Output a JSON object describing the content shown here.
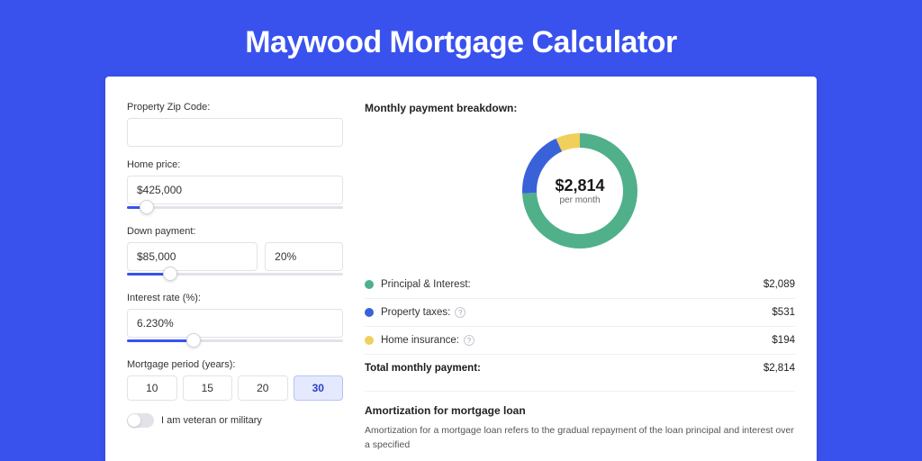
{
  "page": {
    "title": "Maywood Mortgage Calculator",
    "background_color": "#3952ee",
    "card_background": "#ffffff"
  },
  "form": {
    "zip": {
      "label": "Property Zip Code:",
      "value": ""
    },
    "home_price": {
      "label": "Home price:",
      "value": "$425,000",
      "slider_percent": 9
    },
    "down_payment": {
      "label": "Down payment:",
      "value": "$85,000",
      "percent_value": "20%",
      "slider_percent": 20
    },
    "interest_rate": {
      "label": "Interest rate (%):",
      "value": "6.230%",
      "slider_percent": 31
    },
    "mortgage_period": {
      "label": "Mortgage period (years):",
      "options": [
        "10",
        "15",
        "20",
        "30"
      ],
      "selected": "30"
    },
    "veteran": {
      "label": "I am veteran or military",
      "checked": false
    }
  },
  "breakdown": {
    "heading": "Monthly payment breakdown:",
    "donut": {
      "center_amount": "$2,814",
      "center_sub": "per month",
      "segments": [
        {
          "key": "principal_interest",
          "value": 2089,
          "color": "#4fb08a"
        },
        {
          "key": "property_taxes",
          "value": 531,
          "color": "#3a62d8"
        },
        {
          "key": "home_insurance",
          "value": 194,
          "color": "#f1cf5b"
        }
      ],
      "stroke_width": 16,
      "radius": 56
    },
    "rows": [
      {
        "label": "Principal & Interest:",
        "value": "$2,089",
        "color": "#4fb08a",
        "info": false
      },
      {
        "label": "Property taxes:",
        "value": "$531",
        "color": "#3a62d8",
        "info": true
      },
      {
        "label": "Home insurance:",
        "value": "$194",
        "color": "#f1cf5b",
        "info": true
      }
    ],
    "total": {
      "label": "Total monthly payment:",
      "value": "$2,814"
    }
  },
  "amortization": {
    "title": "Amortization for mortgage loan",
    "text": "Amortization for a mortgage loan refers to the gradual repayment of the loan principal and interest over a specified"
  },
  "style": {
    "input_border": "#e1e3e8",
    "slider_fill": "#3952ee",
    "active_period_bg": "#e4e9fd",
    "title_font_size": 34,
    "label_font_size": 11
  }
}
